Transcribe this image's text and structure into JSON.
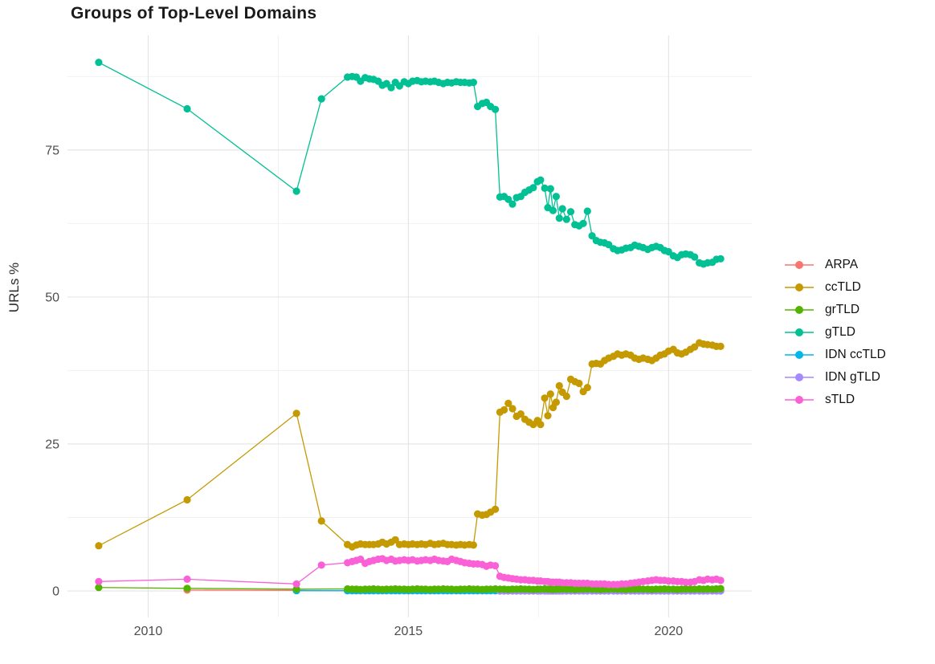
{
  "chart_data": {
    "type": "line",
    "title": "Groups of Top-Level Domains",
    "xlabel": "",
    "ylabel": "URLs %",
    "legend_position": "right",
    "grid": true,
    "background": "#ffffff",
    "grid_major_color": "#e3e3e3",
    "grid_minor_color": "#f0f0f0",
    "tick_label_color": "#4d4d4d",
    "xlim": [
      2008.45,
      2021.6
    ],
    "ylim": [
      -4.5,
      94.5
    ],
    "x_ticks_major": [
      2010,
      2015,
      2020
    ],
    "x_ticks_minor": [
      2012.5,
      2017.5
    ],
    "y_ticks_major": [
      0,
      25,
      50,
      75
    ],
    "y_ticks_minor": [
      12.5,
      37.5,
      62.5,
      87.5
    ],
    "draw_order": [
      "ARPA",
      "ccTLD",
      "IDN ccTLD",
      "IDN gTLD",
      "grTLD",
      "gTLD",
      "sTLD"
    ],
    "x_monthly": [
      2013.83,
      2013.92,
      2014.0,
      2014.08,
      2014.17,
      2014.25,
      2014.33,
      2014.42,
      2014.5,
      2014.58,
      2014.67,
      2014.75,
      2014.83,
      2014.92,
      2015.0,
      2015.08,
      2015.17,
      2015.25,
      2015.33,
      2015.42,
      2015.5,
      2015.58,
      2015.67,
      2015.75,
      2015.83,
      2015.92,
      2016.0,
      2016.08,
      2016.17,
      2016.25,
      2016.33,
      2016.42,
      2016.5,
      2016.58,
      2016.67,
      2016.76,
      2016.84,
      2016.92,
      2017.0,
      2017.08,
      2017.16,
      2017.24,
      2017.32,
      2017.4,
      2017.48,
      2017.54,
      2017.62,
      2017.68,
      2017.73,
      2017.78,
      2017.84,
      2017.9,
      2017.96,
      2018.04,
      2018.12,
      2018.2,
      2018.28,
      2018.36,
      2018.44,
      2018.53,
      2018.61,
      2018.69,
      2018.77,
      2018.85,
      2018.94,
      2019.02,
      2019.1,
      2019.18,
      2019.27,
      2019.35,
      2019.43,
      2019.51,
      2019.6,
      2019.68,
      2019.76,
      2019.84,
      2019.92,
      2020.0,
      2020.09,
      2020.17,
      2020.25,
      2020.33,
      2020.42,
      2020.5,
      2020.59,
      2020.67,
      2020.75,
      2020.84,
      2020.92,
      2021.0
    ],
    "series": [
      {
        "name": "ARPA",
        "color": "#F8766D",
        "early_points": [
          [
            2010.75,
            0.15
          ],
          [
            2012.85,
            0.1
          ]
        ],
        "monthly_offset": 0,
        "monthly_fill": 0.05
      },
      {
        "name": "ccTLD",
        "color": "#C49A00",
        "early_points": [
          [
            2009.05,
            7.7
          ],
          [
            2010.75,
            15.5
          ],
          [
            2012.85,
            30.2
          ],
          [
            2013.33,
            11.9
          ]
        ],
        "monthly_offset": 0,
        "monthly_values": [
          7.9,
          7.5,
          7.8,
          8.0,
          7.9,
          7.9,
          7.9,
          8.0,
          8.3,
          8.0,
          8.3,
          8.7,
          7.9,
          8.0,
          7.9,
          8.0,
          7.9,
          8.0,
          7.9,
          8.1,
          7.9,
          8.0,
          8.1,
          7.9,
          7.9,
          7.8,
          7.9,
          7.8,
          7.9,
          7.8,
          13.1,
          12.9,
          13.0,
          13.4,
          13.9,
          30.4,
          30.8,
          31.9,
          31.0,
          29.7,
          30.1,
          29.2,
          28.7,
          28.3,
          29.0,
          28.3,
          32.8,
          29.8,
          33.5,
          31.2,
          32.1,
          34.9,
          33.8,
          33.1,
          36.0,
          35.6,
          35.3,
          33.9,
          34.6,
          38.6,
          38.7,
          38.6,
          39.2,
          39.6,
          39.9,
          40.3,
          40.1,
          40.3,
          40.1,
          39.6,
          39.4,
          39.6,
          39.4,
          39.2,
          39.6,
          40.1,
          40.3,
          40.8,
          41.1,
          40.5,
          40.3,
          40.6,
          41.1,
          41.5,
          42.2,
          42.0,
          41.9,
          41.8,
          41.6,
          41.6
        ]
      },
      {
        "name": "grTLD",
        "color": "#53B400",
        "early_points": [
          [
            2009.05,
            0.6
          ],
          [
            2010.75,
            0.45
          ],
          [
            2012.85,
            0.3
          ]
        ],
        "monthly_offset": 0,
        "monthly_values": [
          0.35,
          0.3,
          0.3,
          0.25,
          0.3,
          0.3,
          0.35,
          0.3,
          0.25,
          0.3,
          0.3,
          0.35,
          0.3,
          0.3,
          0.25,
          0.3,
          0.35,
          0.3,
          0.3,
          0.25,
          0.3,
          0.3,
          0.35,
          0.3,
          0.3,
          0.25,
          0.3,
          0.3,
          0.35,
          0.3,
          0.3,
          0.25,
          0.3,
          0.3,
          0.35,
          0.3,
          0.3,
          0.25,
          0.3,
          0.3,
          0.35,
          0.3,
          0.3,
          0.25,
          0.3,
          0.3,
          0.35,
          0.3,
          0.3,
          0.25,
          0.3,
          0.3,
          0.35,
          0.3,
          0.3,
          0.25,
          0.3,
          0.3,
          0.35,
          0.3,
          0.3,
          0.25,
          0.3,
          0.3,
          0.35,
          0.3,
          0.3,
          0.25,
          0.3,
          0.3,
          0.35,
          0.3,
          0.3,
          0.25,
          0.3,
          0.3,
          0.35,
          0.3,
          0.3,
          0.25,
          0.3,
          0.35,
          0.3,
          0.3,
          0.35,
          0.3,
          0.35,
          0.3,
          0.35,
          0.4
        ]
      },
      {
        "name": "gTLD",
        "color": "#00C094",
        "early_points": [
          [
            2009.05,
            89.9
          ],
          [
            2010.75,
            82.0
          ],
          [
            2012.85,
            68.0
          ],
          [
            2013.33,
            83.7
          ]
        ],
        "monthly_offset": 0,
        "monthly_values": [
          87.4,
          87.5,
          87.4,
          86.7,
          87.3,
          87.1,
          87.0,
          86.7,
          86.0,
          86.3,
          85.6,
          86.5,
          85.9,
          86.6,
          86.3,
          86.7,
          86.8,
          86.6,
          86.7,
          86.6,
          86.7,
          86.5,
          86.3,
          86.5,
          86.4,
          86.6,
          86.5,
          86.5,
          86.4,
          86.5,
          82.4,
          82.9,
          83.1,
          82.4,
          81.9,
          67.0,
          67.1,
          66.6,
          65.8,
          66.9,
          67.1,
          67.8,
          68.2,
          68.6,
          69.6,
          69.9,
          68.5,
          65.2,
          68.4,
          64.7,
          67.1,
          63.4,
          65.0,
          63.2,
          64.5,
          62.3,
          62.1,
          62.5,
          64.6,
          60.4,
          59.6,
          59.3,
          59.2,
          58.9,
          58.2,
          57.9,
          58.0,
          58.3,
          58.4,
          58.8,
          58.6,
          58.4,
          58.1,
          58.4,
          58.6,
          58.4,
          57.9,
          57.7,
          57.0,
          56.7,
          57.2,
          57.3,
          57.2,
          56.8,
          55.8,
          55.6,
          55.8,
          55.9,
          56.4,
          56.5
        ]
      },
      {
        "name": "IDN ccTLD",
        "color": "#00B6EB",
        "early_points": [
          [
            2012.85,
            0.05
          ]
        ],
        "monthly_offset": 0,
        "monthly_fill": 0.05
      },
      {
        "name": "IDN gTLD",
        "color": "#A58AFF",
        "early_points": [],
        "monthly_offset": 35,
        "monthly_fill": 0.0
      },
      {
        "name": "sTLD",
        "color": "#FB61D7",
        "early_points": [
          [
            2009.05,
            1.6
          ],
          [
            2010.75,
            2.0
          ],
          [
            2012.85,
            1.2
          ],
          [
            2013.33,
            4.4
          ]
        ],
        "monthly_offset": 0,
        "monthly_values": [
          4.8,
          5.0,
          5.2,
          5.4,
          4.7,
          5.0,
          5.2,
          5.4,
          5.5,
          5.2,
          5.4,
          5.1,
          5.2,
          5.3,
          5.2,
          5.3,
          5.1,
          5.2,
          5.3,
          5.2,
          5.4,
          5.2,
          5.1,
          5.0,
          5.4,
          5.2,
          5.0,
          4.8,
          4.7,
          4.6,
          4.6,
          4.5,
          4.2,
          4.4,
          4.3,
          2.5,
          2.3,
          2.2,
          2.1,
          2.0,
          1.9,
          1.9,
          1.8,
          1.8,
          1.7,
          1.7,
          1.6,
          1.6,
          1.5,
          1.5,
          1.5,
          1.5,
          1.4,
          1.4,
          1.4,
          1.3,
          1.3,
          1.3,
          1.3,
          1.2,
          1.2,
          1.2,
          1.2,
          1.1,
          1.1,
          1.1,
          1.2,
          1.2,
          1.3,
          1.4,
          1.5,
          1.6,
          1.7,
          1.8,
          1.9,
          1.8,
          1.8,
          1.7,
          1.7,
          1.6,
          1.6,
          1.5,
          1.5,
          1.6,
          1.9,
          1.8,
          2.0,
          1.9,
          2.0,
          1.8
        ]
      }
    ]
  }
}
